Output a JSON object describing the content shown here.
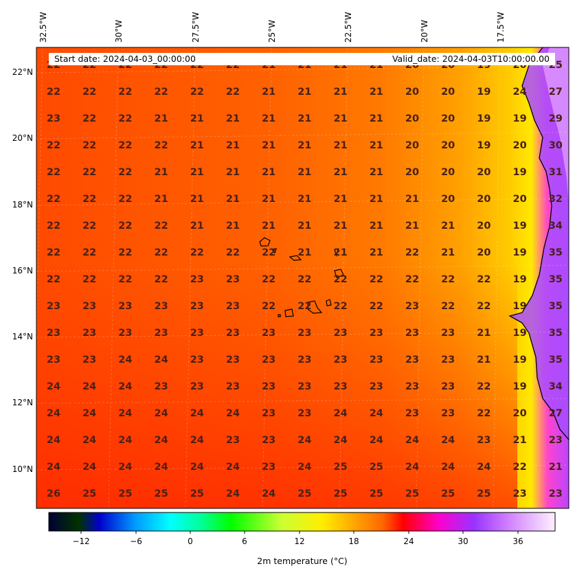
{
  "map": {
    "longitude_labels": [
      "32.5°W",
      "30°W",
      "27.5°W",
      "25°W",
      "22.5°W",
      "20°W",
      "17.5°W"
    ],
    "latitude_labels": [
      "22°N",
      "20°N",
      "18°N",
      "16°N",
      "14°N",
      "12°N",
      "10°N"
    ],
    "start_date": "Start date: 2024-04-03_00:00:00",
    "valid_date": "Valid_date: 2024-04-03T10:00:00.00",
    "grid_values": [
      [
        22,
        22,
        22,
        22,
        22,
        22,
        21,
        21,
        21,
        21,
        20,
        20,
        19,
        20,
        25
      ],
      [
        22,
        22,
        22,
        22,
        22,
        22,
        21,
        21,
        21,
        21,
        20,
        20,
        19,
        24,
        27
      ],
      [
        23,
        22,
        22,
        21,
        21,
        21,
        21,
        21,
        21,
        21,
        20,
        20,
        19,
        19,
        29
      ],
      [
        22,
        22,
        22,
        22,
        21,
        21,
        21,
        21,
        21,
        21,
        20,
        20,
        19,
        20,
        30
      ],
      [
        22,
        22,
        22,
        21,
        21,
        21,
        21,
        21,
        21,
        21,
        20,
        20,
        20,
        19,
        31
      ],
      [
        22,
        22,
        22,
        21,
        21,
        21,
        21,
        21,
        21,
        21,
        21,
        20,
        20,
        20,
        32
      ],
      [
        22,
        22,
        22,
        22,
        21,
        21,
        21,
        21,
        21,
        21,
        21,
        21,
        20,
        19,
        34
      ],
      [
        22,
        22,
        22,
        22,
        22,
        22,
        22,
        21,
        21,
        21,
        22,
        21,
        20,
        19,
        35
      ],
      [
        22,
        22,
        22,
        22,
        23,
        23,
        22,
        22,
        22,
        22,
        22,
        22,
        22,
        19,
        35
      ],
      [
        23,
        23,
        23,
        23,
        23,
        23,
        22,
        22,
        22,
        22,
        23,
        22,
        22,
        19,
        35
      ],
      [
        23,
        23,
        23,
        23,
        23,
        23,
        23,
        23,
        23,
        23,
        23,
        23,
        21,
        19,
        35
      ],
      [
        23,
        23,
        24,
        24,
        23,
        23,
        23,
        23,
        23,
        23,
        23,
        23,
        21,
        19,
        35
      ],
      [
        24,
        24,
        24,
        23,
        23,
        23,
        23,
        23,
        23,
        23,
        23,
        23,
        22,
        19,
        34
      ],
      [
        24,
        24,
        24,
        24,
        24,
        24,
        23,
        23,
        24,
        24,
        23,
        23,
        22,
        20,
        27
      ],
      [
        24,
        24,
        24,
        24,
        24,
        23,
        23,
        24,
        24,
        24,
        24,
        24,
        23,
        21,
        23
      ],
      [
        24,
        24,
        24,
        24,
        24,
        24,
        23,
        24,
        25,
        25,
        24,
        24,
        24,
        22,
        21
      ],
      [
        26,
        25,
        25,
        25,
        25,
        24,
        24,
        25,
        25,
        25,
        25,
        25,
        25,
        23,
        23
      ]
    ]
  },
  "colorbar": {
    "ticks": [
      "−12",
      "−6",
      "0",
      "6",
      "12",
      "18",
      "24",
      "30",
      "36"
    ],
    "label": "2m temperature (°C)"
  }
}
